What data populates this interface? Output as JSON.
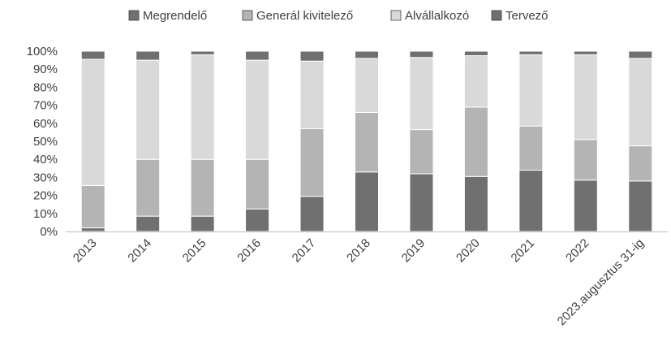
{
  "chart_data": {
    "type": "bar",
    "stacked": true,
    "percent": true,
    "categories": [
      "2013",
      "2014",
      "2015",
      "2016",
      "2017",
      "2018",
      "2019",
      "2020",
      "2021",
      "2022",
      "2023.augusztus 31-ig"
    ],
    "series": [
      {
        "name": "Megrendelő",
        "color": "#707070",
        "values": [
          2,
          8.5,
          8.5,
          12.5,
          19.5,
          33,
          32,
          30.5,
          34,
          28.5,
          28
        ]
      },
      {
        "name": "Generál kivitelező",
        "color": "#b4b4b4",
        "values": [
          23.5,
          31.5,
          31.5,
          27.5,
          37.5,
          33,
          24.5,
          38.5,
          24.5,
          22.5,
          19.5
        ]
      },
      {
        "name": "Alvállalkozó",
        "color": "#d9d9d9",
        "values": [
          70,
          55,
          58,
          55,
          37.5,
          30,
          40,
          28.5,
          39.5,
          47,
          48.5
        ]
      },
      {
        "name": "Tervező",
        "color": "#707070",
        "values": [
          4.5,
          5,
          2,
          5,
          5.5,
          4,
          3.5,
          2.5,
          2,
          2,
          4
        ]
      }
    ],
    "y_ticks": [
      "0%",
      "10%",
      "20%",
      "30%",
      "40%",
      "50%",
      "60%",
      "70%",
      "80%",
      "90%",
      "100%"
    ],
    "ylim": [
      0,
      100
    ],
    "legend_position": "top",
    "grid": false
  }
}
